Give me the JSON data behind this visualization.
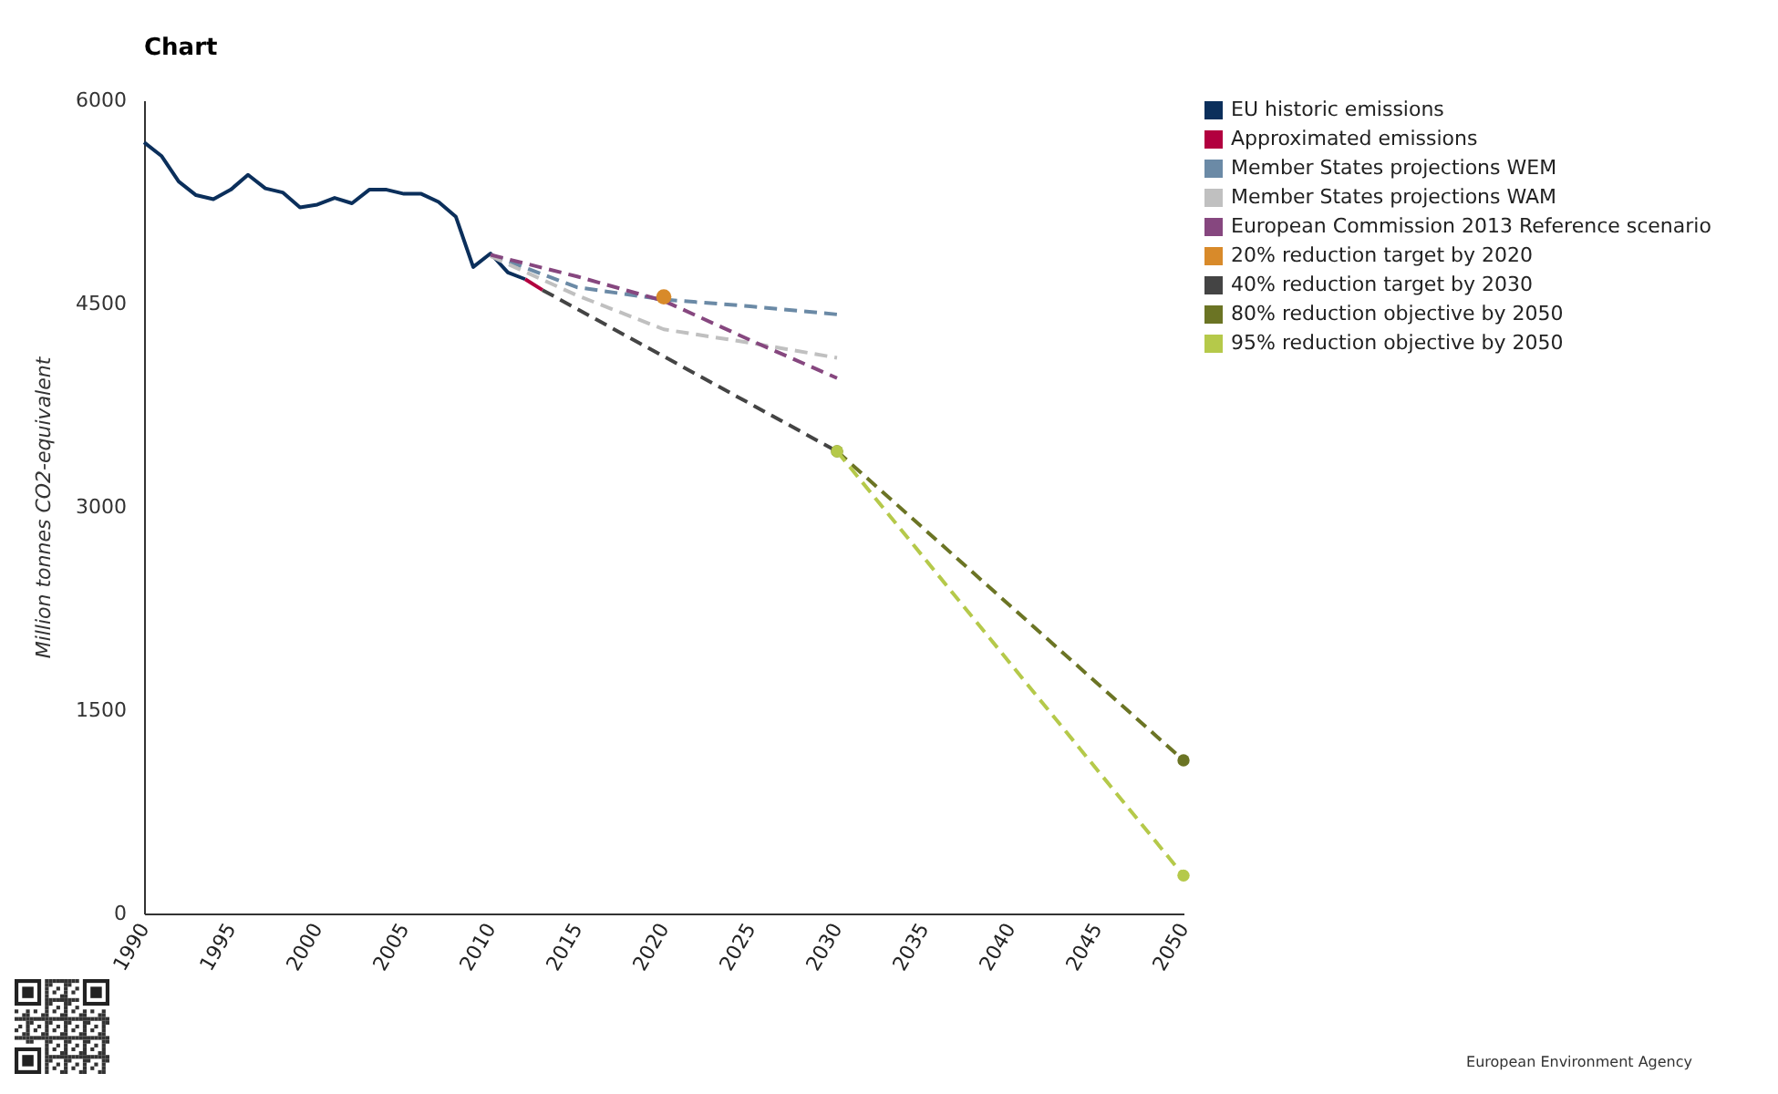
{
  "chart_data": {
    "type": "line",
    "title": "Chart",
    "ylabel": "Million tonnes CO2-equivalent",
    "xlim": [
      1990,
      2050
    ],
    "ylim": [
      0,
      6000
    ],
    "xticks": [
      1990,
      1995,
      2000,
      2005,
      2010,
      2015,
      2020,
      2025,
      2030,
      2035,
      2040,
      2045,
      2050
    ],
    "yticks": [
      0,
      1500,
      3000,
      4500,
      6000
    ],
    "legend": "right",
    "annotations": [
      "European Environment Agency"
    ],
    "series": [
      {
        "name": "EU historic emissions",
        "color": "#0b2f5b",
        "x": [
          1990,
          1991,
          1992,
          1993,
          1994,
          1995,
          1996,
          1997,
          1998,
          1999,
          2000,
          2001,
          2002,
          2003,
          2004,
          2005,
          2006,
          2007,
          2008,
          2009,
          2010,
          2011,
          2012
        ],
        "values": [
          5690,
          5590,
          5400,
          5300,
          5270,
          5340,
          5450,
          5350,
          5320,
          5210,
          5230,
          5280,
          5240,
          5340,
          5340,
          5310,
          5310,
          5250,
          5140,
          4770,
          4870,
          4730,
          4680
        ]
      },
      {
        "name": "Approximated emissions",
        "color": "#b2003f",
        "x": [
          2012,
          2013
        ],
        "values": [
          4680,
          4600
        ]
      },
      {
        "name": "Member States projections WEM",
        "color": "#6b8aa6",
        "x": [
          2010,
          2015,
          2020,
          2025,
          2030
        ],
        "values": [
          4860,
          4620,
          4530,
          4480,
          4420
        ],
        "line_style": "dashed"
      },
      {
        "name": "Member States projections WAM",
        "color": "#c0c0c0",
        "x": [
          2010,
          2015,
          2020,
          2025,
          2030
        ],
        "values": [
          4850,
          4560,
          4310,
          4210,
          4100
        ],
        "line_style": "dashed"
      },
      {
        "name": "European Commission 2013 Reference scenario",
        "color": "#86477f",
        "x": [
          2010,
          2015,
          2020,
          2025,
          2030
        ],
        "values": [
          4860,
          4700,
          4520,
          4230,
          3950
        ],
        "line_style": "dashed"
      },
      {
        "name": "20% reduction target by 2020",
        "color": "#d88a2a",
        "type": "scatter",
        "x": [
          2020
        ],
        "values": [
          4550
        ],
        "marker": "circle"
      },
      {
        "name": "40% reduction target by 2030",
        "color": "#444444",
        "x": [
          2013,
          2030
        ],
        "values": [
          4600,
          3410
        ],
        "line_style": "dashed"
      },
      {
        "name": "80% reduction objective by 2050",
        "color": "#6b7424",
        "x": [
          2030,
          2050
        ],
        "values": [
          3410,
          1130
        ],
        "line_style": "dashed",
        "marker": "circle"
      },
      {
        "name": "95% reduction objective by 2050",
        "color": "#b5c94a",
        "x": [
          2030,
          2050
        ],
        "values": [
          3410,
          280
        ],
        "line_style": "dashed",
        "marker": "circle"
      }
    ]
  }
}
